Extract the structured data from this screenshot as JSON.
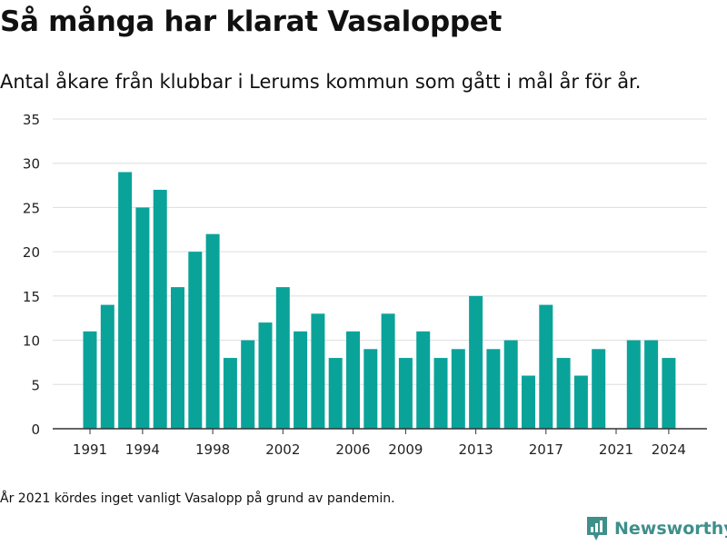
{
  "header": {
    "title": "Så många har klarat Vasaloppet",
    "subtitle": "Antal åkare från klubbar i Lerums kommun som gått i mål år för år."
  },
  "footer": {
    "note": "År 2021 kördes inget vanligt Vasalopp på grund av pandemin.",
    "brand": "Newsworthy"
  },
  "colors": {
    "bar": "#0aa39a",
    "grid": "#dddddd",
    "axis": "#333333",
    "brand": "#3f8f8a"
  },
  "chart_data": {
    "type": "bar",
    "categories": [
      "1991",
      "1992",
      "1993",
      "1994",
      "1995",
      "1996",
      "1997",
      "1998",
      "1999",
      "2000",
      "2001",
      "2002",
      "2003",
      "2004",
      "2005",
      "2006",
      "2007",
      "2008",
      "2009",
      "2010",
      "2011",
      "2012",
      "2013",
      "2014",
      "2015",
      "2016",
      "2017",
      "2018",
      "2019",
      "2020",
      "2021",
      "2022",
      "2023",
      "2024"
    ],
    "values": [
      11,
      14,
      29,
      25,
      27,
      16,
      20,
      22,
      8,
      10,
      12,
      16,
      11,
      13,
      8,
      11,
      9,
      13,
      8,
      11,
      8,
      9,
      15,
      9,
      10,
      6,
      14,
      8,
      6,
      9,
      0,
      10,
      10,
      8
    ],
    "xticks": [
      "1991",
      "1994",
      "1998",
      "2002",
      "2006",
      "2009",
      "2013",
      "2017",
      "2021",
      "2024"
    ],
    "yticks": [
      0,
      5,
      10,
      15,
      20,
      25,
      30,
      35
    ],
    "ylim": [
      0,
      35
    ],
    "grid": true,
    "xlabel": "",
    "ylabel": ""
  }
}
